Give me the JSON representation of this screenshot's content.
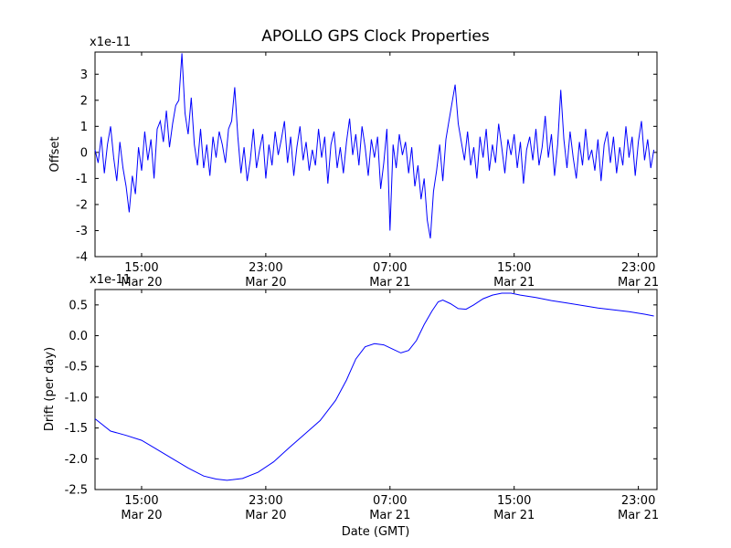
{
  "title": "APOLLO GPS Clock Properties",
  "xlabel": "Date (GMT)",
  "line_color": "#0000ff",
  "chart_data": [
    {
      "type": "line",
      "name": "offset",
      "ylabel": "Offset",
      "scale_label": "x1e-11",
      "xlim": [
        12,
        48.2
      ],
      "ylim": [
        -4,
        3.85
      ],
      "x_ticks": [
        {
          "x": 15,
          "time": "15:00",
          "date": "Mar 20"
        },
        {
          "x": 23,
          "time": "23:00",
          "date": "Mar 20"
        },
        {
          "x": 31,
          "time": "07:00",
          "date": "Mar 21"
        },
        {
          "x": 39,
          "time": "15:00",
          "date": "Mar 21"
        },
        {
          "x": 47,
          "time": "23:00",
          "date": "Mar 21"
        }
      ],
      "y_ticks": [
        {
          "v": 3,
          "label": "3"
        },
        {
          "v": 2,
          "label": "2"
        },
        {
          "v": 1,
          "label": "1"
        },
        {
          "v": 0,
          "label": "0"
        },
        {
          "v": -1,
          "label": "-1"
        },
        {
          "v": -2,
          "label": "-2"
        },
        {
          "v": -3,
          "label": "-3"
        },
        {
          "v": -4,
          "label": "-4"
        }
      ],
      "series": {
        "x_start": 12,
        "x_step": 0.2,
        "values": [
          0.1,
          -0.4,
          0.6,
          -0.8,
          0.3,
          1.0,
          -0.2,
          -1.1,
          0.4,
          -0.6,
          -1.3,
          -2.3,
          -0.9,
          -1.6,
          0.2,
          -0.7,
          0.8,
          -0.3,
          0.5,
          -1.0,
          0.9,
          1.2,
          0.4,
          1.6,
          0.2,
          1.1,
          1.8,
          2.0,
          3.8,
          1.5,
          0.7,
          2.1,
          0.3,
          -0.5,
          0.9,
          -0.6,
          0.3,
          -0.9,
          0.6,
          -0.2,
          0.8,
          0.3,
          -0.4,
          0.9,
          1.2,
          2.5,
          0.6,
          -0.8,
          0.2,
          -1.1,
          -0.3,
          0.9,
          -0.6,
          0.1,
          0.7,
          -1.0,
          0.3,
          -0.5,
          0.8,
          -0.1,
          0.5,
          1.2,
          -0.4,
          0.6,
          -0.9,
          0.2,
          1.0,
          -0.3,
          0.4,
          -0.7,
          0.1,
          -0.5,
          0.9,
          -0.2,
          0.6,
          -1.2,
          0.3,
          0.8,
          -0.6,
          0.2,
          -0.8,
          0.4,
          1.3,
          -0.1,
          0.7,
          -0.5,
          1.0,
          0.2,
          -0.9,
          0.5,
          -0.2,
          0.6,
          -1.4,
          -0.4,
          0.9,
          -3.0,
          0.3,
          -0.6,
          0.7,
          -0.1,
          0.4,
          -0.8,
          0.2,
          -1.3,
          -0.5,
          -1.8,
          -1.0,
          -2.6,
          -3.3,
          -1.5,
          -0.7,
          0.3,
          -1.1,
          0.5,
          1.2,
          1.9,
          2.6,
          1.1,
          0.4,
          -0.3,
          0.8,
          -0.5,
          0.2,
          -1.0,
          0.6,
          -0.2,
          0.9,
          -0.7,
          0.3,
          -0.4,
          1.1,
          0.2,
          -0.8,
          0.5,
          -0.1,
          0.7,
          -0.6,
          0.4,
          -1.2,
          0.1,
          0.6,
          -0.3,
          0.9,
          -0.5,
          0.2,
          1.4,
          -0.2,
          0.7,
          -0.9,
          0.3,
          2.4,
          0.5,
          -0.6,
          0.8,
          -0.2,
          -1.0,
          0.4,
          -0.5,
          0.9,
          -0.3,
          0.1,
          -0.7,
          0.5,
          -1.1,
          0.3,
          0.8,
          -0.4,
          0.6,
          -0.8,
          0.2,
          -0.5,
          1.0,
          -0.2,
          0.6,
          -0.9,
          0.4,
          1.2,
          -0.3,
          0.5,
          -0.6,
          0.1
        ]
      }
    },
    {
      "type": "line",
      "name": "drift",
      "ylabel": "Drift (per day)",
      "scale_label": "x1e-11",
      "xlim": [
        12,
        48.2
      ],
      "ylim": [
        -2.5,
        0.75
      ],
      "x_ticks": [
        {
          "x": 15,
          "time": "15:00",
          "date": "Mar 20"
        },
        {
          "x": 23,
          "time": "23:00",
          "date": "Mar 20"
        },
        {
          "x": 31,
          "time": "07:00",
          "date": "Mar 21"
        },
        {
          "x": 39,
          "time": "15:00",
          "date": "Mar 21"
        },
        {
          "x": 47,
          "time": "23:00",
          "date": "Mar 21"
        }
      ],
      "y_ticks": [
        {
          "v": 0.5,
          "label": "0.5"
        },
        {
          "v": 0.0,
          "label": "0.0"
        },
        {
          "v": -0.5,
          "label": "-0.5"
        },
        {
          "v": -1.0,
          "label": "-1.0"
        },
        {
          "v": -1.5,
          "label": "-1.5"
        },
        {
          "v": -2.0,
          "label": "-2.0"
        },
        {
          "v": -2.5,
          "label": "-2.5"
        }
      ],
      "points": [
        [
          12,
          -1.35
        ],
        [
          13,
          -1.55
        ],
        [
          14,
          -1.62
        ],
        [
          15,
          -1.7
        ],
        [
          16,
          -1.85
        ],
        [
          17,
          -2.0
        ],
        [
          18,
          -2.15
        ],
        [
          19,
          -2.28
        ],
        [
          19.8,
          -2.33
        ],
        [
          20.5,
          -2.35
        ],
        [
          21.5,
          -2.32
        ],
        [
          22.5,
          -2.22
        ],
        [
          23.5,
          -2.05
        ],
        [
          24.5,
          -1.82
        ],
        [
          25.5,
          -1.6
        ],
        [
          26.5,
          -1.38
        ],
        [
          27.5,
          -1.05
        ],
        [
          28.2,
          -0.72
        ],
        [
          28.8,
          -0.38
        ],
        [
          29.4,
          -0.18
        ],
        [
          30,
          -0.13
        ],
        [
          30.6,
          -0.15
        ],
        [
          31.2,
          -0.22
        ],
        [
          31.7,
          -0.28
        ],
        [
          32.2,
          -0.24
        ],
        [
          32.7,
          -0.08
        ],
        [
          33.2,
          0.18
        ],
        [
          33.7,
          0.4
        ],
        [
          34.1,
          0.55
        ],
        [
          34.4,
          0.58
        ],
        [
          34.9,
          0.52
        ],
        [
          35.4,
          0.44
        ],
        [
          35.9,
          0.43
        ],
        [
          36.4,
          0.5
        ],
        [
          37,
          0.6
        ],
        [
          37.6,
          0.66
        ],
        [
          38.2,
          0.69
        ],
        [
          38.8,
          0.69
        ],
        [
          39.4,
          0.66
        ],
        [
          40.4,
          0.62
        ],
        [
          41.4,
          0.57
        ],
        [
          42.4,
          0.53
        ],
        [
          43.4,
          0.49
        ],
        [
          44.4,
          0.45
        ],
        [
          45.4,
          0.42
        ],
        [
          46.4,
          0.39
        ],
        [
          47.4,
          0.35
        ],
        [
          48,
          0.32
        ]
      ]
    }
  ]
}
